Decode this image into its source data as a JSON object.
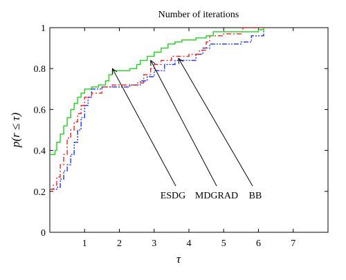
{
  "chart_data": {
    "type": "line",
    "title": "Number of iterations",
    "xlabel": "τ",
    "ylabel": "p(r ≤ τ)",
    "xlim": [
      0,
      8
    ],
    "ylim": [
      0,
      1
    ],
    "xticks": [
      "1",
      "2",
      "3",
      "4",
      "5",
      "6",
      "7"
    ],
    "yticks": [
      "0",
      "0.2",
      "0.4",
      "0.6",
      "0.8",
      "1"
    ],
    "grid": false,
    "legend": "none",
    "series": [
      {
        "name": "ESDG",
        "color": "#22cc22",
        "dash": "solid",
        "points": [
          [
            0.0,
            0.38
          ],
          [
            0.15,
            0.4
          ],
          [
            0.2,
            0.44
          ],
          [
            0.3,
            0.48
          ],
          [
            0.4,
            0.52
          ],
          [
            0.5,
            0.56
          ],
          [
            0.6,
            0.6
          ],
          [
            0.7,
            0.63
          ],
          [
            0.8,
            0.66
          ],
          [
            0.9,
            0.68
          ],
          [
            1.0,
            0.7
          ],
          [
            1.2,
            0.71
          ],
          [
            1.4,
            0.72
          ],
          [
            1.6,
            0.74
          ],
          [
            1.7,
            0.77
          ],
          [
            1.8,
            0.79
          ],
          [
            2.3,
            0.8
          ],
          [
            2.5,
            0.82
          ],
          [
            2.6,
            0.84
          ],
          [
            2.8,
            0.86
          ],
          [
            3.0,
            0.88
          ],
          [
            3.2,
            0.9
          ],
          [
            3.4,
            0.92
          ],
          [
            3.6,
            0.93
          ],
          [
            3.8,
            0.94
          ],
          [
            4.2,
            0.95
          ],
          [
            4.5,
            0.96
          ],
          [
            4.7,
            0.98
          ],
          [
            6.0,
            0.99
          ],
          [
            6.15,
            1.0
          ]
        ]
      },
      {
        "name": "MDGRAD",
        "color": "#ee2222",
        "dash": "dashdot",
        "points": [
          [
            0.0,
            0.21
          ],
          [
            0.1,
            0.23
          ],
          [
            0.2,
            0.27
          ],
          [
            0.3,
            0.33
          ],
          [
            0.4,
            0.38
          ],
          [
            0.5,
            0.46
          ],
          [
            0.6,
            0.5
          ],
          [
            0.7,
            0.54
          ],
          [
            0.8,
            0.58
          ],
          [
            0.9,
            0.62
          ],
          [
            1.0,
            0.66
          ],
          [
            1.2,
            0.68
          ],
          [
            1.5,
            0.71
          ],
          [
            1.8,
            0.72
          ],
          [
            2.5,
            0.73
          ],
          [
            2.7,
            0.77
          ],
          [
            2.9,
            0.8
          ],
          [
            3.0,
            0.82
          ],
          [
            3.2,
            0.84
          ],
          [
            3.5,
            0.86
          ],
          [
            4.0,
            0.87
          ],
          [
            4.3,
            0.89
          ],
          [
            4.5,
            0.93
          ],
          [
            4.6,
            0.96
          ],
          [
            5.0,
            0.97
          ],
          [
            5.5,
            0.98
          ],
          [
            5.55,
            1.0
          ],
          [
            6.15,
            1.0
          ]
        ]
      },
      {
        "name": "BB",
        "color": "#2233ee",
        "dash": "dashdotdot",
        "points": [
          [
            0.0,
            0.21
          ],
          [
            0.2,
            0.22
          ],
          [
            0.3,
            0.26
          ],
          [
            0.4,
            0.3
          ],
          [
            0.5,
            0.33
          ],
          [
            0.6,
            0.38
          ],
          [
            0.7,
            0.44
          ],
          [
            0.8,
            0.5
          ],
          [
            0.9,
            0.56
          ],
          [
            1.0,
            0.62
          ],
          [
            1.1,
            0.66
          ],
          [
            1.2,
            0.7
          ],
          [
            1.5,
            0.71
          ],
          [
            2.3,
            0.72
          ],
          [
            2.6,
            0.74
          ],
          [
            2.8,
            0.76
          ],
          [
            3.0,
            0.79
          ],
          [
            3.3,
            0.82
          ],
          [
            3.6,
            0.84
          ],
          [
            4.2,
            0.87
          ],
          [
            4.4,
            0.9
          ],
          [
            4.6,
            0.92
          ],
          [
            5.5,
            0.93
          ],
          [
            5.8,
            0.96
          ],
          [
            6.15,
            0.96
          ],
          [
            6.15,
            1.0
          ]
        ]
      }
    ],
    "annotations": [
      {
        "label": "ESDG",
        "target": [
          1.8,
          0.8
        ]
      },
      {
        "label": "MDGRAD",
        "target": [
          2.9,
          0.84
        ]
      },
      {
        "label": "BB",
        "target": [
          3.7,
          0.85
        ]
      }
    ]
  }
}
